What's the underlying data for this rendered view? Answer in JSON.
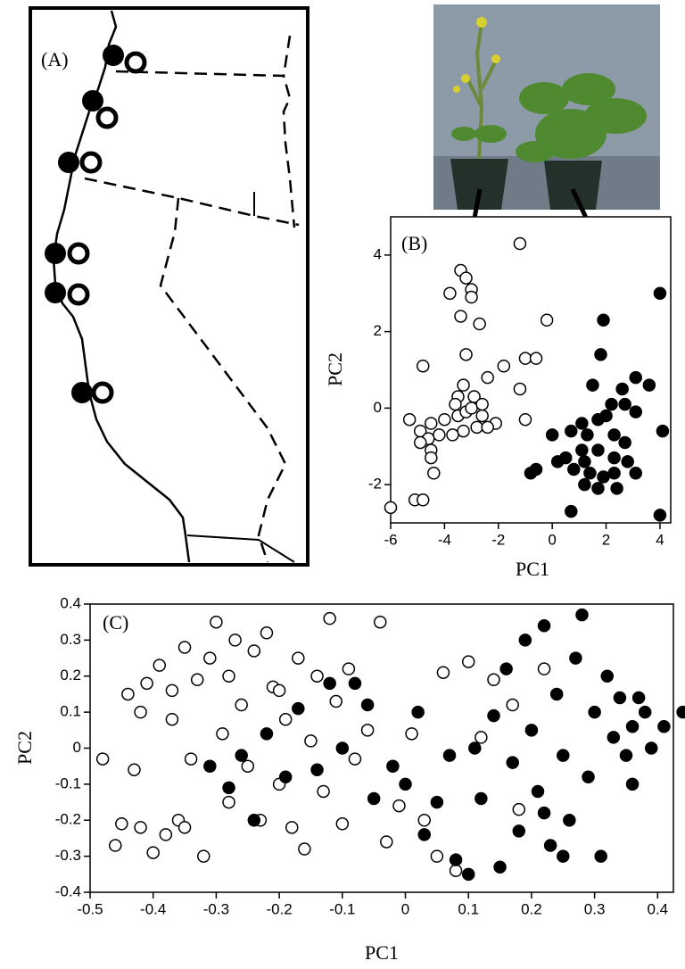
{
  "panel_a": {
    "label": "(A)"
  },
  "chart_data": [
    {
      "type": "scatter",
      "label": "(B)",
      "x_label": "PC1",
      "y_label": "PC2",
      "xlim": [
        -6,
        4.4
      ],
      "ylim": [
        -3,
        5
      ],
      "xticks": [
        -6,
        -4,
        -2,
        0,
        2,
        4
      ],
      "yticks": [
        -2,
        0,
        2,
        4
      ],
      "series": [
        {
          "color": "#000000",
          "filled": false,
          "x": [
            -1.2,
            -3.4,
            -3.2,
            -3.0,
            -3.0,
            -3.8,
            -3.4,
            -2.7,
            -0.2,
            -4.8,
            -3.2,
            -1.8,
            -1.0,
            -0.6,
            -2.4,
            -1.2,
            -3.3,
            -3.5,
            -2.9,
            -1.0,
            -2.1,
            -5.3,
            -4.9,
            -4.5,
            -4.0,
            -3.5,
            -3.2,
            -2.6,
            -2.8,
            -3.3,
            -3.7,
            -4.2,
            -4.6,
            -4.5,
            -4.9,
            -4.5,
            -4.4,
            -3.0,
            -3.6,
            -2.6,
            -2.4,
            -6.0,
            -5.1,
            -4.8
          ],
          "y": [
            4.3,
            3.6,
            3.4,
            3.1,
            2.9,
            3.0,
            2.4,
            2.2,
            2.3,
            1.1,
            1.4,
            1.1,
            1.3,
            1.3,
            0.8,
            0.5,
            0.6,
            0.3,
            0.3,
            -0.3,
            -0.4,
            -0.3,
            -0.6,
            -0.4,
            -0.3,
            -0.2,
            -0.1,
            -0.2,
            -0.5,
            -0.6,
            -0.7,
            -0.7,
            -0.8,
            -1.1,
            -0.9,
            -1.3,
            -1.7,
            0.0,
            0.1,
            0.1,
            -0.5,
            -2.6,
            -2.4,
            -2.4
          ]
        },
        {
          "color": "#000000",
          "filled": true,
          "x": [
            1.9,
            4.0,
            1.8,
            1.5,
            3.1,
            3.6,
            2.6,
            2.2,
            2.7,
            3.1,
            2.0,
            1.7,
            1.1,
            0.7,
            1.3,
            0.0,
            2.3,
            2.7,
            1.1,
            1.7,
            2.3,
            2.8,
            1.2,
            0.5,
            0.2,
            0.8,
            1.4,
            1.9,
            2.3,
            3.1,
            -0.6,
            -0.8,
            1.7,
            2.4,
            1.2,
            0.7,
            4.1,
            4.0
          ],
          "y": [
            2.3,
            3.0,
            1.4,
            0.6,
            0.8,
            0.6,
            0.5,
            0.1,
            0.1,
            -0.1,
            -0.2,
            -0.3,
            -0.4,
            -0.6,
            -0.7,
            -0.7,
            -0.7,
            -0.9,
            -1.1,
            -1.1,
            -1.3,
            -1.4,
            -1.4,
            -1.3,
            -1.4,
            -1.6,
            -1.7,
            -1.8,
            -1.7,
            -1.7,
            -1.6,
            -1.7,
            -2.1,
            -2.1,
            -2.0,
            -2.7,
            -0.6,
            -2.8
          ]
        }
      ]
    },
    {
      "type": "scatter",
      "label": "(C)",
      "x_label": "PC1",
      "y_label": "PC2",
      "xlim": [
        -0.5,
        0.425
      ],
      "ylim": [
        -0.4,
        0.4
      ],
      "xticks": [
        -0.5,
        -0.4,
        -0.3,
        -0.2,
        -0.1,
        0,
        0.1,
        0.2,
        0.3,
        0.4
      ],
      "yticks": [
        -0.4,
        -0.3,
        -0.2,
        -0.1,
        0,
        0.1,
        0.2,
        0.3,
        0.4
      ],
      "series": [
        {
          "color": "#000000",
          "filled": false,
          "x": [
            -0.48,
            -0.46,
            -0.45,
            -0.44,
            -0.43,
            -0.42,
            -0.41,
            -0.4,
            -0.39,
            -0.38,
            -0.37,
            -0.36,
            -0.35,
            -0.34,
            -0.33,
            -0.32,
            -0.31,
            -0.3,
            -0.29,
            -0.28,
            -0.27,
            -0.26,
            -0.25,
            -0.24,
            -0.23,
            -0.22,
            -0.21,
            -0.2,
            -0.19,
            -0.18,
            -0.17,
            -0.16,
            -0.15,
            -0.14,
            -0.13,
            -0.12,
            -0.11,
            -0.1,
            -0.09,
            -0.08,
            -0.06,
            -0.04,
            -0.03,
            -0.01,
            0.01,
            0.03,
            0.05,
            0.06,
            0.08,
            0.1,
            0.12,
            0.14,
            0.17,
            0.18,
            0.22,
            -0.35,
            -0.42,
            -0.37,
            -0.28,
            -0.2
          ],
          "y": [
            -0.03,
            -0.27,
            -0.21,
            0.15,
            -0.06,
            0.1,
            0.18,
            -0.29,
            0.23,
            -0.24,
            0.08,
            -0.2,
            0.28,
            -0.03,
            0.19,
            -0.3,
            0.25,
            0.35,
            0.04,
            -0.15,
            0.3,
            0.12,
            -0.05,
            0.27,
            -0.2,
            0.32,
            0.17,
            -0.1,
            0.08,
            -0.22,
            0.25,
            -0.28,
            0.02,
            0.2,
            -0.12,
            0.36,
            0.13,
            -0.21,
            0.22,
            -0.03,
            0.05,
            0.35,
            -0.26,
            -0.16,
            0.04,
            -0.2,
            -0.3,
            0.21,
            -0.34,
            0.24,
            0.03,
            0.19,
            0.12,
            -0.17,
            0.22,
            -0.22,
            -0.22,
            0.16,
            0.2,
            0.16
          ]
        },
        {
          "color": "#000000",
          "filled": true,
          "x": [
            -0.31,
            -0.28,
            -0.26,
            -0.24,
            -0.22,
            -0.19,
            -0.17,
            -0.14,
            -0.12,
            -0.1,
            -0.08,
            -0.06,
            -0.05,
            -0.02,
            0.0,
            0.02,
            0.03,
            0.05,
            0.07,
            0.08,
            0.1,
            0.11,
            0.12,
            0.14,
            0.15,
            0.16,
            0.17,
            0.18,
            0.19,
            0.2,
            0.21,
            0.22,
            0.23,
            0.24,
            0.25,
            0.26,
            0.27,
            0.28,
            0.29,
            0.3,
            0.31,
            0.32,
            0.33,
            0.34,
            0.35,
            0.36,
            0.37,
            0.38,
            0.39,
            0.41,
            0.44,
            0.36,
            0.22,
            0.25
          ],
          "y": [
            -0.05,
            -0.11,
            -0.02,
            -0.2,
            0.04,
            -0.08,
            0.11,
            -0.06,
            0.18,
            0.0,
            0.18,
            0.12,
            -0.14,
            -0.05,
            -0.1,
            0.1,
            -0.24,
            -0.15,
            -0.02,
            -0.31,
            -0.35,
            0.0,
            -0.14,
            0.09,
            -0.33,
            0.22,
            -0.04,
            -0.23,
            0.3,
            0.05,
            -0.12,
            0.34,
            -0.27,
            0.15,
            -0.02,
            -0.2,
            0.25,
            0.37,
            -0.08,
            0.1,
            -0.3,
            0.2,
            0.03,
            0.14,
            -0.02,
            0.06,
            0.14,
            0.1,
            0.0,
            0.06,
            0.1,
            -0.1,
            -0.18,
            -0.3
          ]
        }
      ]
    }
  ]
}
